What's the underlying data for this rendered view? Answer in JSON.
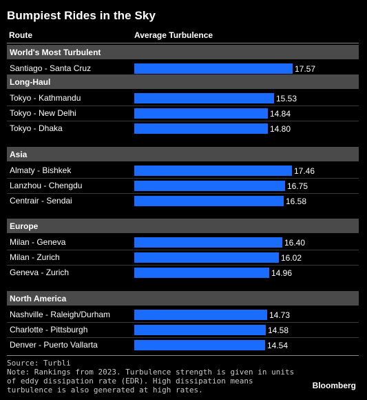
{
  "title": "Bumpiest Rides in the Sky",
  "columns": {
    "route": "Route",
    "turbulence": "Average Turbulence"
  },
  "chart_data": {
    "type": "bar",
    "orientation": "horizontal",
    "xlim": [
      0,
      17.57
    ],
    "groups": [
      {
        "name": "World's Most Turbulent",
        "rows": [
          {
            "route": "Santiago - Santa Cruz",
            "value": 17.57,
            "label": "17.57"
          }
        ]
      },
      {
        "name": "Long-Haul",
        "rows": [
          {
            "route": "Tokyo - Kathmandu",
            "value": 15.53,
            "label": "15.53"
          },
          {
            "route": "Tokyo - New Delhi",
            "value": 14.84,
            "label": "14.84"
          },
          {
            "route": "Tokyo - Dhaka",
            "value": 14.8,
            "label": "14.80"
          }
        ]
      },
      {
        "name": "Asia",
        "rows": [
          {
            "route": "Almaty - Bishkek",
            "value": 17.46,
            "label": "17.46"
          },
          {
            "route": "Lanzhou - Chengdu",
            "value": 16.75,
            "label": "16.75"
          },
          {
            "route": "Centrair - Sendai",
            "value": 16.58,
            "label": "16.58"
          }
        ]
      },
      {
        "name": "Europe",
        "rows": [
          {
            "route": "Milan - Geneva",
            "value": 16.4,
            "label": "16.40"
          },
          {
            "route": "Milan - Zurich",
            "value": 16.02,
            "label": "16.02"
          },
          {
            "route": "Geneva - Zurich",
            "value": 14.96,
            "label": "14.96"
          }
        ]
      },
      {
        "name": "North America",
        "rows": [
          {
            "route": "Nashville - Raleigh/Durham",
            "value": 14.73,
            "label": "14.73"
          },
          {
            "route": "Charlotte - Pittsburgh",
            "value": 14.58,
            "label": "14.58"
          },
          {
            "route": "Denver - Puerto Vallarta",
            "value": 14.54,
            "label": "14.54"
          }
        ]
      }
    ]
  },
  "colors": {
    "bar": "#1a6cff",
    "section_band": "#4a4a4a",
    "background": "#000000"
  },
  "source": "Source: Turbli",
  "note": "Note: Rankings from 2023. Turbulence strength is given in units of eddy dissipation rate (EDR). High dissipation means turbulence is also generated at high rates.",
  "brand": "Bloomberg"
}
